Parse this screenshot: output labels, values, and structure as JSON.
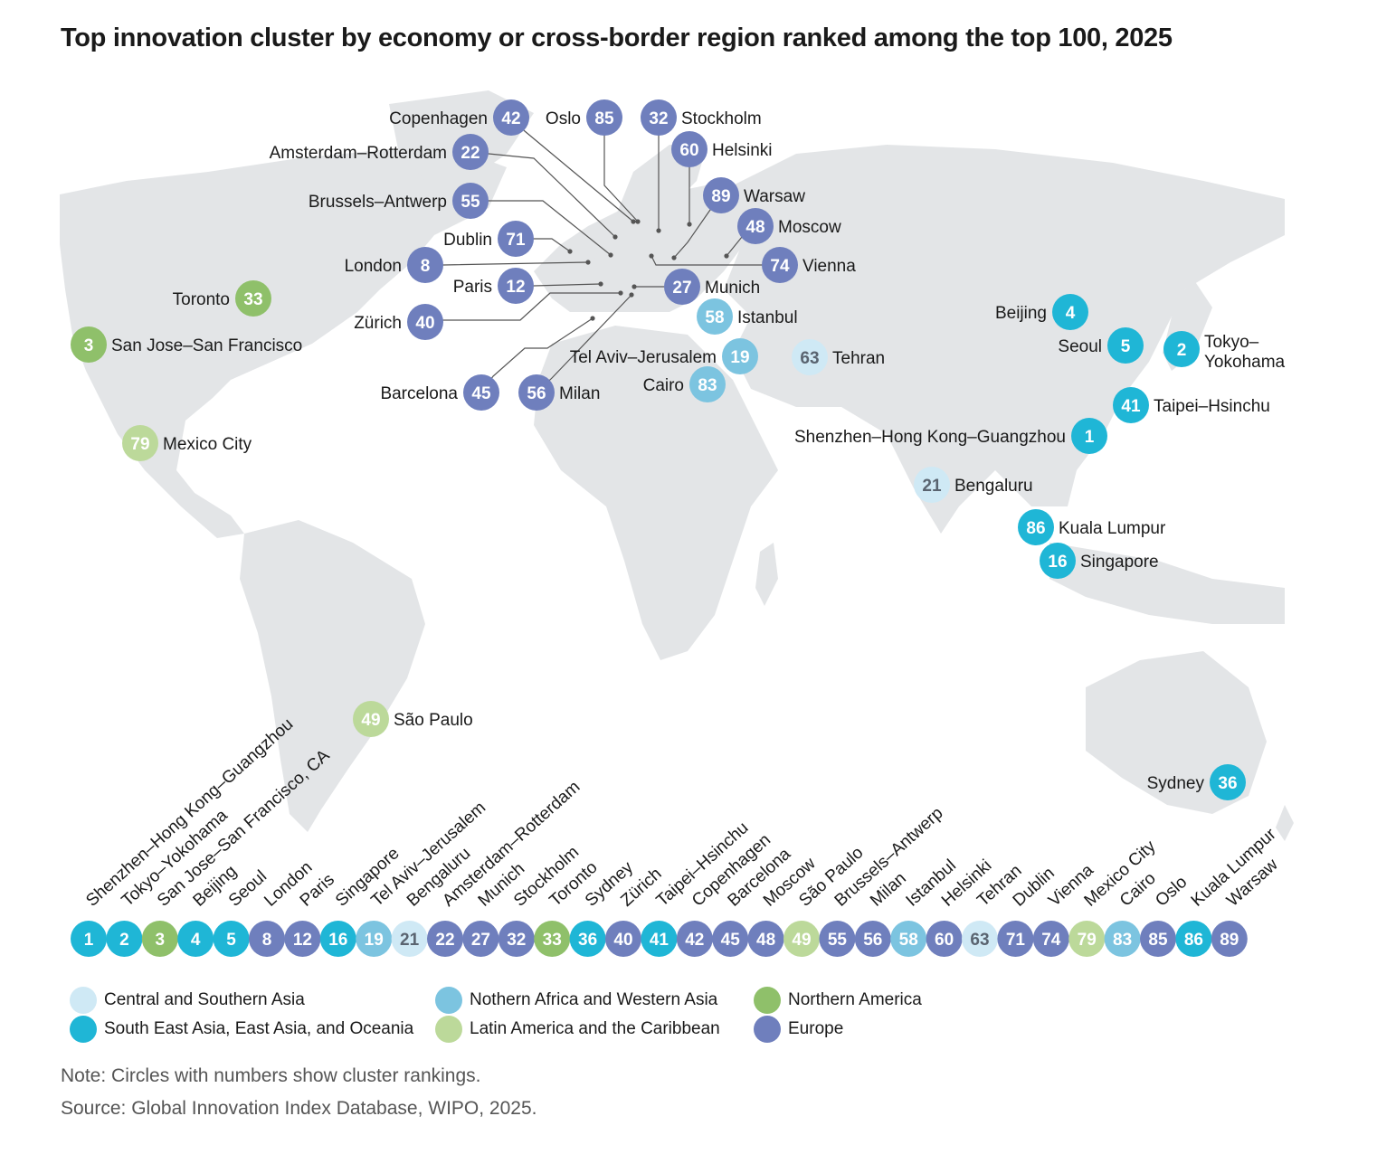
{
  "title": "Top innovation cluster by economy or cross-border region ranked among the top 100, 2025",
  "colors": {
    "central_southern_asia": "#cfe9f5",
    "north_africa_west_asia": "#7cc4e0",
    "northern_america": "#8fc06a",
    "se_asia_oceania": "#1fb6d6",
    "latin_america": "#bcd99a",
    "europe": "#6f7fbd",
    "land": "#e3e5e7"
  },
  "clusters": [
    {
      "name": "Copenhagen",
      "rank": "42",
      "region": "europe"
    },
    {
      "name": "Oslo",
      "rank": "85",
      "region": "europe"
    },
    {
      "name": "Stockholm",
      "rank": "32",
      "region": "europe"
    },
    {
      "name": "Amsterdam–Rotterdam",
      "rank": "22",
      "region": "europe"
    },
    {
      "name": "Helsinki",
      "rank": "60",
      "region": "europe"
    },
    {
      "name": "Warsaw",
      "rank": "89",
      "region": "europe"
    },
    {
      "name": "Brussels–Antwerp",
      "rank": "55",
      "region": "europe"
    },
    {
      "name": "Moscow",
      "rank": "48",
      "region": "europe"
    },
    {
      "name": "Dublin",
      "rank": "71",
      "region": "europe"
    },
    {
      "name": "London",
      "rank": "8",
      "region": "europe"
    },
    {
      "name": "Vienna",
      "rank": "74",
      "region": "europe"
    },
    {
      "name": "Paris",
      "rank": "12",
      "region": "europe"
    },
    {
      "name": "Munich",
      "rank": "27",
      "region": "europe"
    },
    {
      "name": "Toronto",
      "rank": "33",
      "region": "northern_america"
    },
    {
      "name": "Zürich",
      "rank": "40",
      "region": "europe"
    },
    {
      "name": "Istanbul",
      "rank": "58",
      "region": "north_africa_west_asia"
    },
    {
      "name": "Beijing",
      "rank": "4",
      "region": "se_asia_oceania"
    },
    {
      "name": "San Jose–San Francisco",
      "rank": "3",
      "region": "northern_america"
    },
    {
      "name": "Seoul",
      "rank": "5",
      "region": "se_asia_oceania"
    },
    {
      "name": "Tokyo–Yokohama",
      "rank": "2",
      "region": "se_asia_oceania"
    },
    {
      "name": "Tel Aviv–Jerusalem",
      "rank": "19",
      "region": "north_africa_west_asia"
    },
    {
      "name": "Tehran",
      "rank": "63",
      "region": "central_southern_asia"
    },
    {
      "name": "Cairo",
      "rank": "83",
      "region": "north_africa_west_asia"
    },
    {
      "name": "Barcelona",
      "rank": "45",
      "region": "europe"
    },
    {
      "name": "Milan",
      "rank": "56",
      "region": "europe"
    },
    {
      "name": "Taipei–Hsinchu",
      "rank": "41",
      "region": "se_asia_oceania"
    },
    {
      "name": "Shenzhen–Hong Kong–Guangzhou",
      "rank": "1",
      "region": "se_asia_oceania"
    },
    {
      "name": "Mexico City",
      "rank": "79",
      "region": "latin_america"
    },
    {
      "name": "Bengaluru",
      "rank": "21",
      "region": "central_southern_asia"
    },
    {
      "name": "Kuala Lumpur",
      "rank": "86",
      "region": "se_asia_oceania"
    },
    {
      "name": "Singapore",
      "rank": "16",
      "region": "se_asia_oceania"
    },
    {
      "name": "São Paulo",
      "rank": "49",
      "region": "latin_america"
    },
    {
      "name": "Sydney",
      "rank": "36",
      "region": "se_asia_oceania"
    }
  ],
  "ranking_strip": [
    {
      "name": "Shenzhen–Hong Kong–Guangzhou",
      "rank": "1",
      "region": "se_asia_oceania"
    },
    {
      "name": "Tokyo–Yokohama",
      "rank": "2",
      "region": "se_asia_oceania"
    },
    {
      "name": "San Jose–San Francisco, CA",
      "rank": "3",
      "region": "northern_america"
    },
    {
      "name": "Beijing",
      "rank": "4",
      "region": "se_asia_oceania"
    },
    {
      "name": "Seoul",
      "rank": "5",
      "region": "se_asia_oceania"
    },
    {
      "name": "London",
      "rank": "8",
      "region": "europe"
    },
    {
      "name": "Paris",
      "rank": "12",
      "region": "europe"
    },
    {
      "name": "Singapore",
      "rank": "16",
      "region": "se_asia_oceania"
    },
    {
      "name": "Tel Aviv–Jerusalem",
      "rank": "19",
      "region": "north_africa_west_asia"
    },
    {
      "name": "Bengaluru",
      "rank": "21",
      "region": "central_southern_asia"
    },
    {
      "name": "Amsterdam–Rotterdam",
      "rank": "22",
      "region": "europe"
    },
    {
      "name": "Munich",
      "rank": "27",
      "region": "europe"
    },
    {
      "name": "Stockholm",
      "rank": "32",
      "region": "europe"
    },
    {
      "name": "Toronto",
      "rank": "33",
      "region": "northern_america"
    },
    {
      "name": "Sydney",
      "rank": "36",
      "region": "se_asia_oceania"
    },
    {
      "name": "Zürich",
      "rank": "40",
      "region": "europe"
    },
    {
      "name": "Taipei–Hsinchu",
      "rank": "41",
      "region": "se_asia_oceania"
    },
    {
      "name": "Copenhagen",
      "rank": "42",
      "region": "europe"
    },
    {
      "name": "Barcelona",
      "rank": "45",
      "region": "europe"
    },
    {
      "name": "Moscow",
      "rank": "48",
      "region": "europe"
    },
    {
      "name": "São Paulo",
      "rank": "49",
      "region": "latin_america"
    },
    {
      "name": "Brussels–Antwerp",
      "rank": "55",
      "region": "europe"
    },
    {
      "name": "Milan",
      "rank": "56",
      "region": "europe"
    },
    {
      "name": "Istanbul",
      "rank": "58",
      "region": "north_africa_west_asia"
    },
    {
      "name": "Helsinki",
      "rank": "60",
      "region": "europe"
    },
    {
      "name": "Tehran",
      "rank": "63",
      "region": "central_southern_asia"
    },
    {
      "name": "Dublin",
      "rank": "71",
      "region": "europe"
    },
    {
      "name": "Vienna",
      "rank": "74",
      "region": "europe"
    },
    {
      "name": "Mexico City",
      "rank": "79",
      "region": "latin_america"
    },
    {
      "name": "Cairo",
      "rank": "83",
      "region": "north_africa_west_asia"
    },
    {
      "name": "Oslo",
      "rank": "85",
      "region": "europe"
    },
    {
      "name": "Kuala Lumpur",
      "rank": "86",
      "region": "se_asia_oceania"
    },
    {
      "name": "Warsaw",
      "rank": "89",
      "region": "europe"
    }
  ],
  "legend": [
    {
      "label": "Central and Southern Asia",
      "region": "central_southern_asia"
    },
    {
      "label": "Nothern Africa and Western Asia",
      "region": "north_africa_west_asia"
    },
    {
      "label": "Northern America",
      "region": "northern_america"
    },
    {
      "label": "South East Asia, East Asia, and Oceania",
      "region": "se_asia_oceania"
    },
    {
      "label": "Latin America and the Caribbean",
      "region": "latin_america"
    },
    {
      "label": "Europe",
      "region": "europe"
    }
  ],
  "note": "Note: Circles with numbers show cluster rankings.",
  "source": "Source: Global Innovation Index Database, WIPO, 2025."
}
